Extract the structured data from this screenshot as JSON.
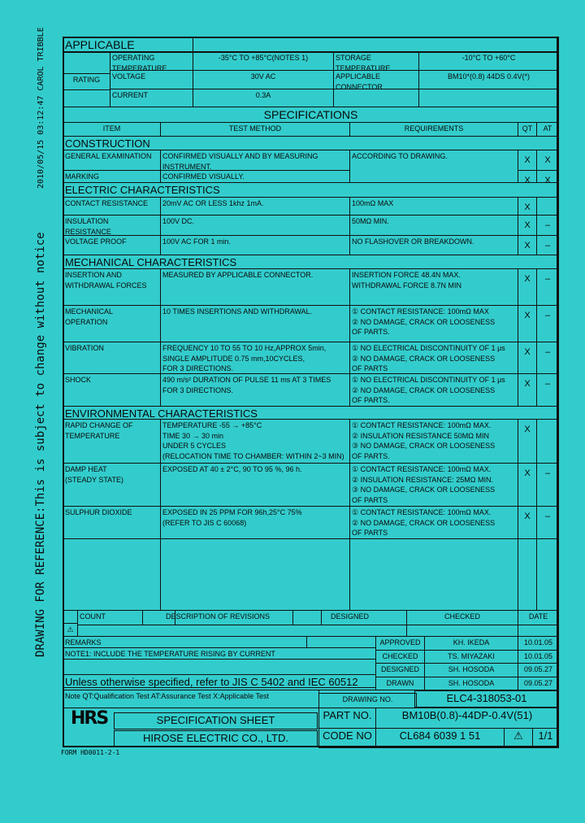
{
  "side": {
    "timestamp": "2010/05/15 03:12:47 CAROL TRIBBLE",
    "notice": "DRAWING FOR REFERENCE:This is subject to change without notice"
  },
  "standard": {
    "title": "APPLICABLE STANDARD",
    "rating_label": "RATING",
    "operating_temp_label": "OPERATING\nTEMPERATURE RANGE",
    "operating_temp_value": "-35°C TO +85°C(NOTES 1)",
    "storage_temp_label": "STORAGE\nTEMPERATURE RANGE",
    "storage_temp_value": "-10°C TO +60°C",
    "voltage_label": "VOLTAGE",
    "voltage_value": "30V AC",
    "connector_label": "APPLICABLE\nCONNECTOR",
    "connector_value": "BM10*(0.8) 44DS 0.4V(*)",
    "current_label": "CURRENT",
    "current_value": "0.3A"
  },
  "specs": {
    "title": "SPECIFICATIONS",
    "headers": {
      "item": "ITEM",
      "test_method": "TEST METHOD",
      "requirements": "REQUIREMENTS",
      "qt": "QT",
      "at": "AT"
    },
    "sections": [
      {
        "heading": "CONSTRUCTION",
        "rows": [
          {
            "item": "GENERAL EXAMINATION",
            "method": "CONFIRMED VISUALLY AND BY MEASURING\nINSTRUMENT.",
            "requirements": "ACCORDING TO DRAWING.",
            "qt": "X",
            "at": "X"
          },
          {
            "item": "MARKING",
            "method": "CONFIRMED VISUALLY.",
            "requirements": "",
            "qt": "X",
            "at": "X"
          }
        ]
      },
      {
        "heading": "ELECTRIC CHARACTERISTICS",
        "rows": [
          {
            "item": "CONTACT RESISTANCE",
            "method": "20mV AC OR LESS 1khz 1mA.",
            "requirements": "100mΩ MAX",
            "qt": "X",
            "at": ""
          },
          {
            "item": "INSULATION\nRESISTANCE",
            "method": "100V DC.",
            "requirements": "50MΩ MIN.",
            "qt": "X",
            "at": "–"
          },
          {
            "item": "VOLTAGE PROOF",
            "method": "100V AC FOR 1 min.",
            "requirements": "NO FLASHOVER OR BREAKDOWN.",
            "qt": "X",
            "at": "–"
          }
        ]
      },
      {
        "heading": "MECHANICAL CHARACTERISTICS",
        "rows": [
          {
            "item": "INSERTION AND\nWITHDRAWAL FORCES",
            "method": "MEASURED BY APPLICABLE CONNECTOR.",
            "requirements": "INSERTION FORCE        48.4N MAX.\nWITHDRAWAL FORCE     8.7N MIN",
            "qt": "X",
            "at": "–"
          },
          {
            "item": "MECHANICAL\nOPERATION",
            "method": "10 TIMES INSERTIONS AND WITHDRAWAL.",
            "requirements": "① CONTACT RESISTANCE: 100mΩ MAX\n② NO DAMAGE, CRACK OR LOOSENESS\n    OF PARTS.",
            "qt": "X",
            "at": "–"
          },
          {
            "item": "VIBRATION",
            "method": "FREQUENCY 10 TO 55 TO 10 Hz,APPROX 5min,\nSINGLE AMPLITUDE 0.75 mm,10CYCLES,\nFOR 3 DIRECTIONS.",
            "requirements": "① NO ELECTRICAL DISCONTINUITY OF 1 μs\n② NO DAMAGE, CRACK OR LOOSENESS\n    OF PARTS",
            "qt": "X",
            "at": "–"
          },
          {
            "item": "SHOCK",
            "method": "490 m/s² DURATION OF PULSE 11 ms AT 3 TIMES\nFOR 3 DIRECTIONS.",
            "requirements": "① NO ELECTRICAL DISCONTINUITY OF 1 μs\n② NO DAMAGE, CRACK OR LOOSENESS\n    OF PARTS.",
            "qt": "X",
            "at": "–"
          }
        ]
      },
      {
        "heading": "ENVIRONMENTAL CHARACTERISTICS",
        "rows": [
          {
            "item": "RAPID CHANGE OF\nTEMPERATURE",
            "method": "TEMPERATURE     -55  →  +85°C\nTIME                     30   →   30   min\nUNDER 5 CYCLES\n(RELOCATION TIME TO CHAMBER: WITHIN 2~3 MIN)",
            "requirements": "① CONTACT RESISTANCE:        100mΩ MAX.\n② INSULATION RESISTANCE      50MΩ MIN\n③ NO DAMAGE, CRACK OR LOOSENESS\n    OF PARTS.",
            "qt": "X",
            "at": ""
          },
          {
            "item": "DAMP HEAT\n(STEADY STATE)",
            "method": "EXPOSED AT 40 ± 2°C, 90 TO 95 %, 96 h.",
            "requirements": "① CONTACT RESISTANCE:        100mΩ MAX.\n② INSULATION RESISTANCE:     25MΩ MIN.\n③ NO DAMAGE, CRACK OR LOOSENESS\n    OF PARTS",
            "qt": "X",
            "at": "–"
          },
          {
            "item": "SULPHUR DIOXIDE",
            "method": "EXPOSED IN 25 PPM FOR 96h,25°C 75%\n(REFER TO JIS C 60068)",
            "requirements": "① CONTACT RESISTANCE:        100mΩ MAX.\n② NO DAMAGE, CRACK OR LOOSENESS\n    OF PARTS",
            "qt": "X",
            "at": "–"
          }
        ]
      }
    ]
  },
  "revisions": {
    "count": "COUNT",
    "description": "DESCRIPTION OF REVISIONS",
    "designed": "DESIGNED",
    "checked": "CHECKED",
    "date": "DATE"
  },
  "remarks": {
    "title": "REMARKS",
    "note1": "NOTE1: INCLUDE THE TEMPERATURE RISING BY CURRENT",
    "standard": "Unless otherwise specified, refer to JIS C 5402 and IEC 60512",
    "legend": "Note   QT:Qualification Test   AT:Assurance Test X:Applicable Test"
  },
  "approvals": [
    {
      "role": "APPROVED",
      "name": "KH. IKEDA",
      "date": "10.01.05"
    },
    {
      "role": "CHECKED",
      "name": "TS. MIYAZAKI",
      "date": "10.01.05"
    },
    {
      "role": "DESIGNED",
      "name": "SH. HOSODA",
      "date": "09.05.27"
    },
    {
      "role": "DRAWN",
      "name": "SH. HOSODA",
      "date": "09.05.27"
    }
  ],
  "footer": {
    "drawing_no_label": "DRAWING NO.",
    "drawing_no": "ELC4-318053-01",
    "logo": "HRS",
    "sheet_title": "SPECIFICATION SHEET",
    "company": "HIROSE ELECTRIC CO., LTD.",
    "part_no_label": "PART NO.",
    "part_no": "BM10B(0.8)-44DP-0.4V(51)",
    "code_no_label": "CODE NO",
    "code_no": "CL684 6039 1 51",
    "revision_mark": "⚠",
    "sheet": "1/1",
    "form": "FORM HD0011-2-1"
  }
}
